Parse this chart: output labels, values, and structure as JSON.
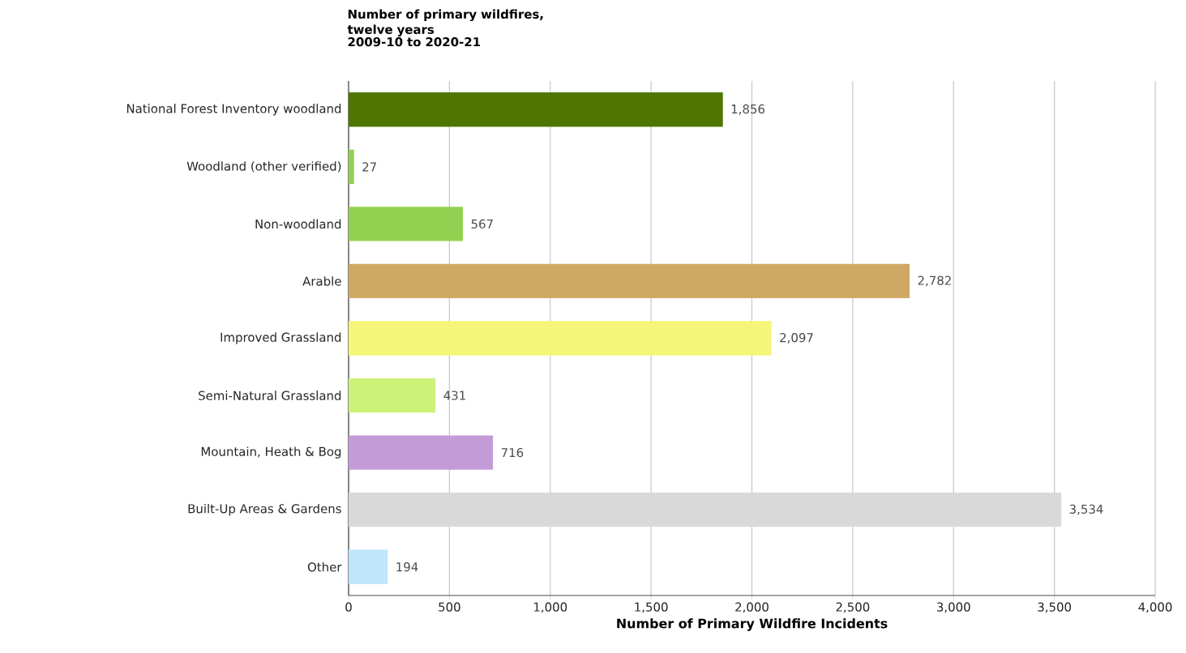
{
  "chart_data": {
    "type": "bar",
    "orientation": "horizontal",
    "title": "Number of primary wildfires, twelve years",
    "subtitle": "2009-10 to 2020-21",
    "xlabel": "Number of Primary Wildfire Incidents",
    "categories": [
      "National Forest Inventory woodland",
      "Woodland (other verified)",
      "Non-woodland",
      "Arable",
      "Improved Grassland",
      "Semi-Natural Grassland",
      "Mountain, Heath & Bog",
      "Built-Up Areas & Gardens",
      "Other"
    ],
    "values": [
      1856,
      27,
      567,
      2782,
      2097,
      431,
      716,
      3534,
      194
    ],
    "colors": [
      "#4e7600",
      "#92d050",
      "#92d050",
      "#cfa864",
      "#f5f57a",
      "#ccf27a",
      "#c39bd6",
      "#d9d9d9",
      "#bfe6fb"
    ],
    "xlim": [
      0,
      4000
    ],
    "xticks": [
      0,
      500,
      {
        "value": 1000,
        "label": "1,000"
      },
      {
        "value": 1500,
        "label": "1,500"
      },
      {
        "value": 2000,
        "label": "2,000"
      },
      {
        "value": 2500,
        "label": "2,500"
      },
      {
        "value": 3000,
        "label": "3,000"
      },
      {
        "value": 3500,
        "label": "3,500"
      },
      {
        "value": 4000,
        "label": "4,000"
      }
    ],
    "value_labels": [
      "1,856",
      "27",
      "567",
      "2,782",
      "2,097",
      "431",
      "716",
      "3,534",
      "194"
    ],
    "grid": "x"
  }
}
